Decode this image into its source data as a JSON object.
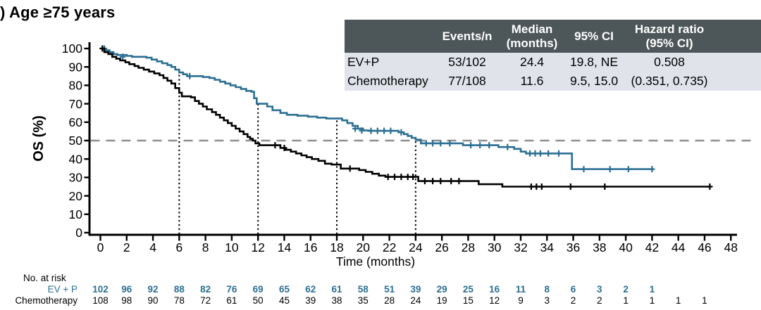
{
  "title": ") Age ≥75 years",
  "colors": {
    "evp": "#2b6f93",
    "chemo": "#000000",
    "table_header_bg": "#4d5659",
    "table_header_text": "#ffffff",
    "table_body_bg": "#e0e3ea",
    "reference_line": "#8f8f8f",
    "axis": "#000000"
  },
  "summary_table": {
    "headers": {
      "label": "",
      "events": "Events/n",
      "median": "Median\n(months)",
      "ci": "95% CI",
      "hr": "Hazard ratio\n(95% CI)"
    },
    "rows": [
      {
        "label": "EV+P",
        "events": "53/102",
        "median": "24.4",
        "ci": "19.8, NE",
        "hr": "0.508"
      },
      {
        "label": "Chemotherapy",
        "events": "77/108",
        "median": "11.6",
        "ci": "9.5, 15.0",
        "hr": "(0.351, 0.735)"
      }
    ]
  },
  "chart_data": {
    "type": "line",
    "subtype": "kaplan-meier-step",
    "title": "",
    "xlabel": "Time (months)",
    "ylabel": "OS (%)",
    "xlim": [
      0,
      48
    ],
    "ylim": [
      0,
      100
    ],
    "grid": false,
    "x_ticks": [
      0,
      2,
      4,
      6,
      8,
      10,
      12,
      14,
      16,
      18,
      20,
      22,
      24,
      26,
      28,
      30,
      32,
      34,
      36,
      38,
      40,
      42,
      44,
      46,
      48
    ],
    "y_ticks": [
      0,
      10,
      20,
      30,
      40,
      50,
      60,
      70,
      80,
      90,
      100
    ],
    "reference_lines": {
      "h_dashed_y": 50,
      "v_dotted": [
        {
          "x": 6,
          "top": 87
        },
        {
          "x": 12,
          "top": 70
        },
        {
          "x": 18,
          "top": 61
        },
        {
          "x": 24,
          "top": 50.5
        }
      ]
    },
    "series": [
      {
        "name": "EV+P",
        "color": "#2b6f93",
        "steps": [
          [
            0,
            100
          ],
          [
            0.3,
            99
          ],
          [
            0.7,
            98
          ],
          [
            1.0,
            97
          ],
          [
            1.3,
            96.5
          ],
          [
            2.0,
            96
          ],
          [
            2.4,
            95.5
          ],
          [
            3.5,
            95
          ],
          [
            3.9,
            94
          ],
          [
            4.3,
            93
          ],
          [
            4.7,
            92
          ],
          [
            5.1,
            91
          ],
          [
            5.4,
            90
          ],
          [
            5.7,
            88.5
          ],
          [
            6.0,
            87
          ],
          [
            6.3,
            86
          ],
          [
            6.6,
            85
          ],
          [
            7.8,
            84.5
          ],
          [
            8.3,
            84
          ],
          [
            8.7,
            83
          ],
          [
            9.1,
            82
          ],
          [
            9.5,
            81
          ],
          [
            9.9,
            80
          ],
          [
            10.3,
            79
          ],
          [
            10.7,
            78
          ],
          [
            11.1,
            77
          ],
          [
            11.5,
            76.5
          ],
          [
            11.7,
            73
          ],
          [
            11.9,
            70
          ],
          [
            12.7,
            68.5
          ],
          [
            13.1,
            66.5
          ],
          [
            13.7,
            65
          ],
          [
            14.2,
            64
          ],
          [
            15.0,
            63.5
          ],
          [
            15.8,
            63
          ],
          [
            16.5,
            62.5
          ],
          [
            17.2,
            62
          ],
          [
            18.4,
            61
          ],
          [
            18.8,
            59.5
          ],
          [
            19.2,
            58
          ],
          [
            19.6,
            56.5
          ],
          [
            20.0,
            55.5
          ],
          [
            20.4,
            55.3
          ],
          [
            22.7,
            54.5
          ],
          [
            23.1,
            53.5
          ],
          [
            23.4,
            52.5
          ],
          [
            23.7,
            51.5
          ],
          [
            24.0,
            50.5
          ],
          [
            24.4,
            48.5
          ],
          [
            27.6,
            47.5
          ],
          [
            30.3,
            46.5
          ],
          [
            31.5,
            45.5
          ],
          [
            32.0,
            44
          ],
          [
            32.4,
            43
          ],
          [
            35.9,
            34.5
          ]
        ],
        "end": 42.1,
        "censors": [
          [
            0.3,
            100
          ],
          [
            1.7,
            95.5
          ],
          [
            6.8,
            85
          ],
          [
            19.4,
            56.5
          ],
          [
            19.9,
            55.5
          ],
          [
            20.6,
            55.3
          ],
          [
            21.1,
            55.3
          ],
          [
            21.6,
            55.3
          ],
          [
            22.1,
            55.3
          ],
          [
            22.9,
            54.5
          ],
          [
            24.8,
            48.5
          ],
          [
            25.3,
            48.5
          ],
          [
            25.9,
            48.5
          ],
          [
            26.6,
            48.5
          ],
          [
            28.2,
            47.5
          ],
          [
            28.9,
            47.5
          ],
          [
            29.6,
            47.5
          ],
          [
            31.0,
            46.5
          ],
          [
            32.7,
            43
          ],
          [
            33.1,
            43
          ],
          [
            33.5,
            43
          ],
          [
            34.1,
            43
          ],
          [
            34.9,
            43
          ],
          [
            36.8,
            34.5
          ],
          [
            38.8,
            34.5
          ],
          [
            40.2,
            34.5
          ],
          [
            42.0,
            34.5
          ]
        ]
      },
      {
        "name": "Chemotherapy",
        "color": "#000000",
        "steps": [
          [
            0,
            100
          ],
          [
            0.3,
            98
          ],
          [
            0.6,
            97
          ],
          [
            0.9,
            95.5
          ],
          [
            1.2,
            94.5
          ],
          [
            1.5,
            93.5
          ],
          [
            1.9,
            92.5
          ],
          [
            2.2,
            91.5
          ],
          [
            2.6,
            90.5
          ],
          [
            2.9,
            89.5
          ],
          [
            3.3,
            88.5
          ],
          [
            3.7,
            87.5
          ],
          [
            4.1,
            86.5
          ],
          [
            4.5,
            85.5
          ],
          [
            4.8,
            84
          ],
          [
            5.1,
            82.5
          ],
          [
            5.4,
            81
          ],
          [
            5.7,
            78.5
          ],
          [
            6.0,
            76
          ],
          [
            6.2,
            74
          ],
          [
            6.9,
            73.5
          ],
          [
            7.2,
            71.5
          ],
          [
            7.5,
            70
          ],
          [
            7.8,
            68.5
          ],
          [
            8.1,
            67
          ],
          [
            8.5,
            65.5
          ],
          [
            8.8,
            64
          ],
          [
            9.1,
            62.5
          ],
          [
            9.4,
            61
          ],
          [
            9.7,
            59.5
          ],
          [
            10.0,
            58
          ],
          [
            10.3,
            56.5
          ],
          [
            10.6,
            55
          ],
          [
            10.9,
            53.5
          ],
          [
            11.2,
            52
          ],
          [
            11.4,
            51
          ],
          [
            11.6,
            50
          ],
          [
            11.8,
            48.5
          ],
          [
            12.1,
            47.5
          ],
          [
            13.7,
            46
          ],
          [
            14.1,
            45
          ],
          [
            14.5,
            44
          ],
          [
            14.9,
            43
          ],
          [
            15.3,
            42
          ],
          [
            15.7,
            41
          ],
          [
            16.1,
            40
          ],
          [
            16.6,
            39
          ],
          [
            17.1,
            37.5
          ],
          [
            17.6,
            37
          ],
          [
            18.3,
            34.8
          ],
          [
            19.7,
            34
          ],
          [
            20.2,
            33
          ],
          [
            20.7,
            32
          ],
          [
            21.2,
            31
          ],
          [
            21.7,
            30.3
          ],
          [
            24.2,
            28
          ],
          [
            28.8,
            26.3
          ],
          [
            30.6,
            25
          ]
        ],
        "end": 46.4,
        "censors": [
          [
            0.15,
            100
          ],
          [
            13.3,
            47.5
          ],
          [
            14.0,
            46
          ],
          [
            19.0,
            34.8
          ],
          [
            21.9,
            30.3
          ],
          [
            22.4,
            30.3
          ],
          [
            22.9,
            30.3
          ],
          [
            23.4,
            30.3
          ],
          [
            23.8,
            30.3
          ],
          [
            24.7,
            28
          ],
          [
            25.3,
            28
          ],
          [
            25.9,
            28
          ],
          [
            26.7,
            28
          ],
          [
            27.3,
            28
          ],
          [
            32.8,
            25
          ],
          [
            33.2,
            25
          ],
          [
            33.6,
            25
          ],
          [
            35.8,
            25
          ],
          [
            38.4,
            25
          ],
          [
            46.4,
            25
          ]
        ]
      }
    ],
    "medians_shown": {
      "EV+P": 24.4,
      "Chemotherapy": 11.6
    }
  },
  "at_risk": {
    "title": "No. at risk",
    "rows": [
      {
        "label": "EV + P",
        "color": "#2b6f93",
        "values": [
          102,
          96,
          92,
          88,
          82,
          76,
          69,
          65,
          62,
          61,
          58,
          51,
          39,
          29,
          25,
          16,
          11,
          8,
          6,
          3,
          2,
          1
        ]
      },
      {
        "label": "Chemotherapy",
        "color": "#000000",
        "values": [
          108,
          98,
          90,
          78,
          72,
          61,
          50,
          45,
          39,
          38,
          35,
          28,
          24,
          19,
          15,
          12,
          9,
          3,
          2,
          2,
          1,
          1,
          1,
          1
        ]
      }
    ]
  }
}
